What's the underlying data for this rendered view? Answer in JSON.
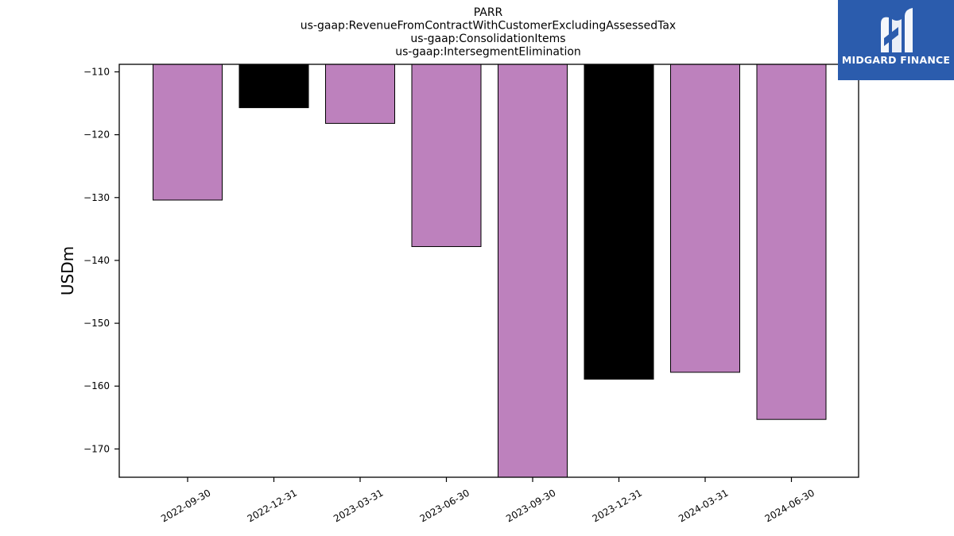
{
  "chart_data": {
    "type": "bar",
    "title": [
      "PARR",
      "us-gaap:RevenueFromContractWithCustomerExcludingAssessedTax",
      "us-gaap:ConsolidationItems",
      "us-gaap:IntersegmentElimination"
    ],
    "ylabel": "USDm",
    "xlabel": "",
    "categories": [
      "2022-09-30",
      "2022-12-31",
      "2023-03-31",
      "2023-06-30",
      "2023-09-30",
      "2023-12-31",
      "2024-03-31",
      "2024-06-30"
    ],
    "values": [
      -130.4,
      -115.7,
      -118.2,
      -137.8,
      -174.5,
      -158.9,
      -157.8,
      -165.3
    ],
    "bar_colors": [
      "#bd81bd",
      "#000000",
      "#bd81bd",
      "#bd81bd",
      "#bd81bd",
      "#000000",
      "#bd81bd",
      "#bd81bd"
    ],
    "ylim": [
      -174.5,
      -108.8
    ],
    "yticks": [
      -110,
      -120,
      -130,
      -140,
      -150,
      -160,
      -170
    ],
    "ytick_labels": [
      "−110",
      "−120",
      "−130",
      "−140",
      "−150",
      "−160",
      "−170"
    ],
    "grid": false,
    "legend": "none"
  },
  "logo": {
    "text": "MIDGARD FINANCE",
    "icon": "midgard-logo-icon",
    "background": "#2b5cad"
  }
}
